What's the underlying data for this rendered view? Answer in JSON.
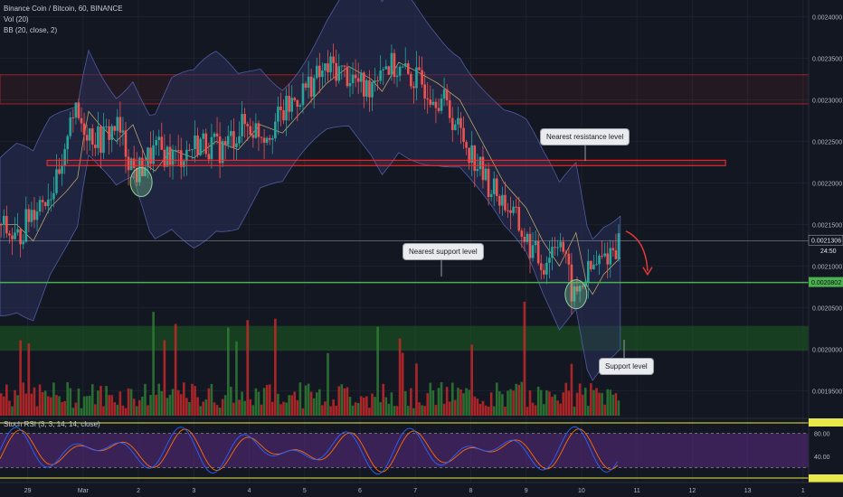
{
  "header": {
    "symbol": "Binance Coin / Bitcoin, 60, BINANCE",
    "vol": "Vol (20)",
    "bb": "BB (20, close, 2)",
    "stoch": "Stoch RSI (3, 3, 14, 14, close)"
  },
  "callouts": {
    "resistance": "Nearest resistance level",
    "support_near": "Nearest support level",
    "support": "Support level"
  },
  "price_labels": {
    "last": "0.0021306",
    "countdown": "24:50",
    "support": "0.0020802"
  },
  "colors": {
    "background": "#131722",
    "up": "#26a69a",
    "down": "#ef5350",
    "vol_up": "#2e7d32",
    "vol_down": "#c62828",
    "bb_fill": "#2a2f5a",
    "resistance_zone": "#ff2b2b",
    "support_line": "#4caf50",
    "support_zone": "#1b5e20",
    "stoch_k": "#2962ff",
    "stoch_d": "#ff6d00",
    "stoch_band": "#5b2c83"
  },
  "chart_data": {
    "type": "candlestick",
    "yaxis": {
      "min": 0.00192,
      "max": 0.00242,
      "ticks": [
        0.0024,
        0.00235,
        0.0023,
        0.00225,
        0.0022,
        0.00215,
        0.0021,
        0.00205,
        0.002,
        0.00195
      ],
      "tick_labels": [
        "0.0024000",
        "0.0023500",
        "0.0023000",
        "0.0022500",
        "0.0022000",
        "0.0021500",
        "0.0021000",
        "0.0020500",
        "0.0020000",
        "0.0019500"
      ]
    },
    "xaxis": {
      "labels": [
        {
          "t": 0.5,
          "label": "29"
        },
        {
          "t": 1.5,
          "label": "Mar"
        },
        {
          "t": 2.5,
          "label": "2"
        },
        {
          "t": 3.5,
          "label": "3"
        },
        {
          "t": 4.5,
          "label": "4"
        },
        {
          "t": 5.5,
          "label": "5"
        },
        {
          "t": 6.5,
          "label": "6"
        },
        {
          "t": 7.5,
          "label": "7"
        },
        {
          "t": 8.5,
          "label": "8"
        },
        {
          "t": 9.5,
          "label": "9"
        },
        {
          "t": 10.5,
          "label": "10"
        },
        {
          "t": 11.5,
          "label": "11"
        },
        {
          "t": 12.5,
          "label": "12"
        },
        {
          "t": 13.5,
          "label": "13"
        },
        {
          "t": 14.5,
          "label": "1"
        }
      ],
      "t_min": 0,
      "t_max": 14.6
    },
    "price_path": [
      [
        0.0,
        0.00215
      ],
      [
        0.3,
        0.00213
      ],
      [
        0.6,
        0.00217
      ],
      [
        0.9,
        0.00219
      ],
      [
        1.15,
        0.00221
      ],
      [
        1.25,
        0.00229
      ],
      [
        1.5,
        0.00227
      ],
      [
        1.8,
        0.00225
      ],
      [
        2.1,
        0.00227
      ],
      [
        2.45,
        0.00221
      ],
      [
        2.8,
        0.00224
      ],
      [
        3.2,
        0.00223
      ],
      [
        3.6,
        0.00225
      ],
      [
        4.0,
        0.00224
      ],
      [
        4.4,
        0.00227
      ],
      [
        4.8,
        0.00226
      ],
      [
        5.2,
        0.00229
      ],
      [
        5.6,
        0.00232
      ],
      [
        6.0,
        0.00234
      ],
      [
        6.4,
        0.002325
      ],
      [
        6.6,
        0.00231
      ],
      [
        6.9,
        0.002345
      ],
      [
        7.2,
        0.002335
      ],
      [
        7.6,
        0.00232
      ],
      [
        8.0,
        0.0023
      ],
      [
        8.4,
        0.00225
      ],
      [
        8.8,
        0.0022
      ],
      [
        9.2,
        0.00217
      ],
      [
        9.5,
        0.00213
      ],
      [
        9.8,
        0.0021
      ],
      [
        10.1,
        0.00214
      ],
      [
        10.35,
        0.00206
      ],
      [
        10.6,
        0.00209
      ],
      [
        10.9,
        0.00211
      ],
      [
        11.2,
        0.0021306
      ]
    ],
    "resistance_zone": [
      0.002295,
      0.00233
    ],
    "resistance_level": {
      "price": 0.002224,
      "t_from": 0.85,
      "t_to": 13.1
    },
    "support_level": 0.0020802,
    "support_zone": [
      0.001998,
      0.002028
    ],
    "last_price": 0.0021306,
    "highlight_circles": [
      {
        "t": 2.55,
        "price": 0.002201
      },
      {
        "t": 10.4,
        "price": 0.002066
      }
    ],
    "stoch_rsi": {
      "levels": [
        80,
        40
      ],
      "band": [
        20,
        80
      ]
    }
  }
}
